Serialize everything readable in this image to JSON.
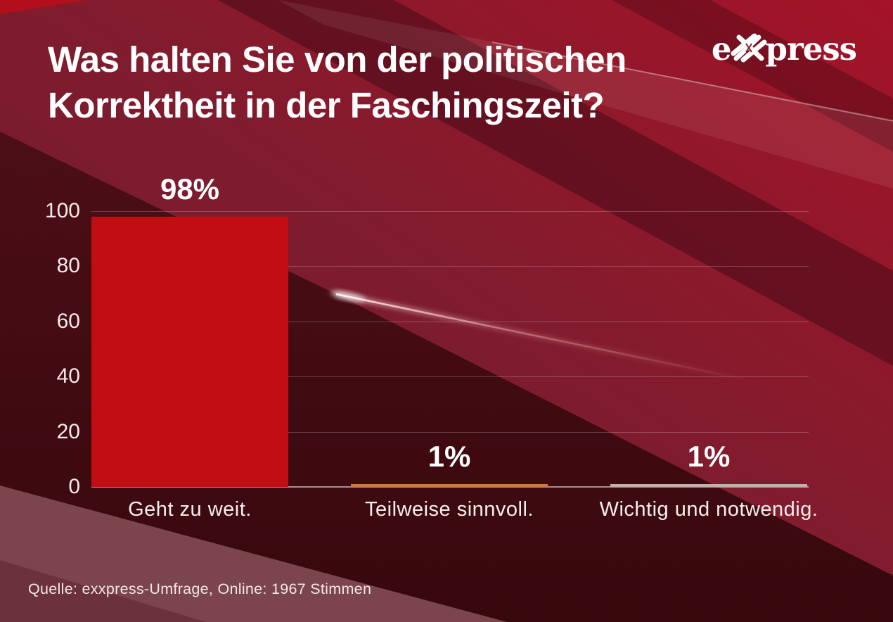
{
  "header": {
    "title_line1": "Was halten Sie von der politischen",
    "title_line2": "Korrektheit in der Faschingszeit?",
    "logo": {
      "text": "exxpress",
      "prefix": "e",
      "suffix": "press",
      "icon": "crossed-xx-monogram"
    }
  },
  "footer": {
    "source": "Quelle:  exxpress-Umfrage, Online: 1967 Stimmen"
  },
  "colors": {
    "bar_main_red": "#c20d13",
    "bar_orange": "#d0744e",
    "bar_gray": "#c2b0ad",
    "background_dark_maroon": "#460d15",
    "background_crimson": "#a21327",
    "background_mauve_stripe": "#7c444c",
    "text_white": "#ffffff"
  },
  "chart_data": {
    "type": "bar",
    "title": "Was halten Sie von der politischen Korrektheit in der Faschingszeit?",
    "categories": [
      "Geht zu weit.",
      "Teilweise sinnvoll.",
      "Wichtig und notwendig."
    ],
    "values": [
      98,
      1,
      1
    ],
    "value_labels": [
      "98%",
      "1%",
      "1%"
    ],
    "bar_colors": [
      "#c20d13",
      "#d0744e",
      "#c2b0ad"
    ],
    "yticks": [
      100,
      80,
      60,
      40,
      20,
      0
    ],
    "ylim": [
      0,
      100
    ],
    "xlabel": "",
    "ylabel": "",
    "grid": true,
    "legend": "none",
    "source": "Quelle:  exxpress-Umfrage, Online: 1967 Stimmen"
  }
}
